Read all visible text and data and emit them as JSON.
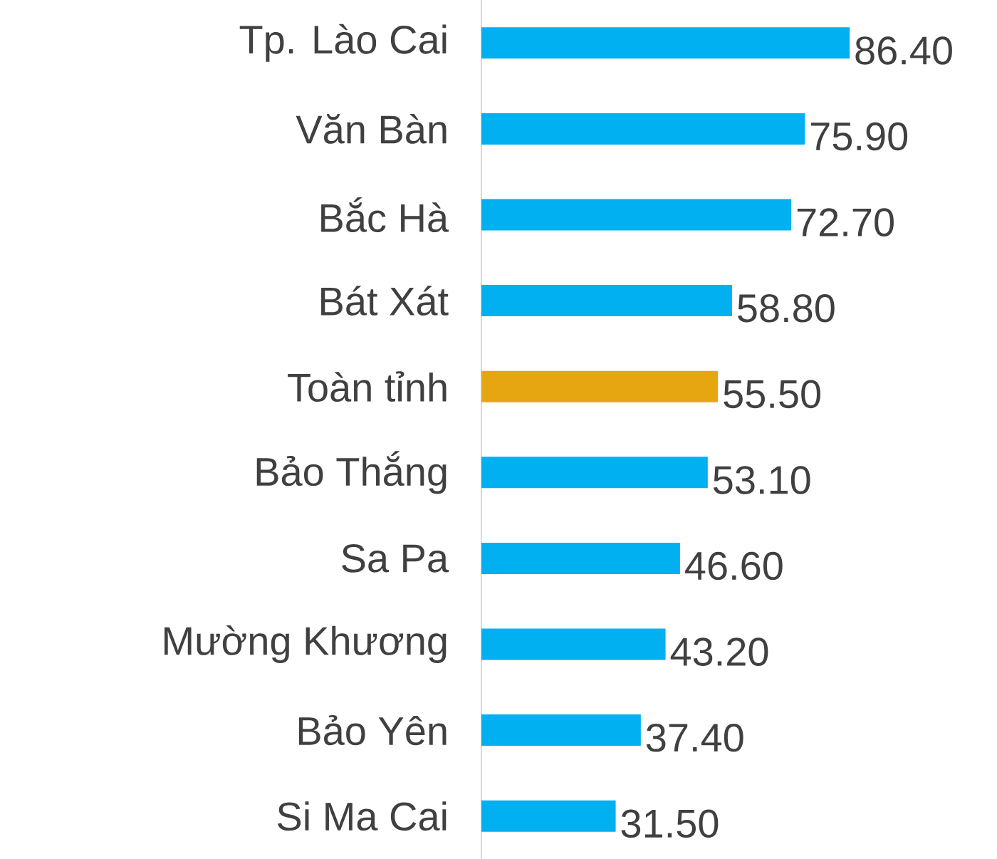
{
  "chart_data": {
    "type": "bar",
    "orientation": "horizontal",
    "categories": [
      "Tp. Lào Cai",
      "Văn Bàn",
      "Bắc Hà",
      "Bát Xát",
      "Toàn tỉnh",
      "Bảo Thắng",
      "Sa Pa",
      "Mường Khương",
      "Bảo Yên",
      "Si Ma Cai"
    ],
    "values": [
      86.4,
      75.9,
      72.7,
      58.8,
      55.5,
      53.1,
      46.6,
      43.2,
      37.4,
      31.5
    ],
    "colors": [
      "#00b0f0",
      "#00b0f0",
      "#00b0f0",
      "#00b0f0",
      "#e6a611",
      "#00b0f0",
      "#00b0f0",
      "#00b0f0",
      "#00b0f0",
      "#00b0f0"
    ],
    "value_labels": [
      "86.40",
      "75.90",
      "72.70",
      "58.80",
      "55.50",
      "53.10",
      "46.60",
      "43.20",
      "37.40",
      "31.50"
    ]
  }
}
